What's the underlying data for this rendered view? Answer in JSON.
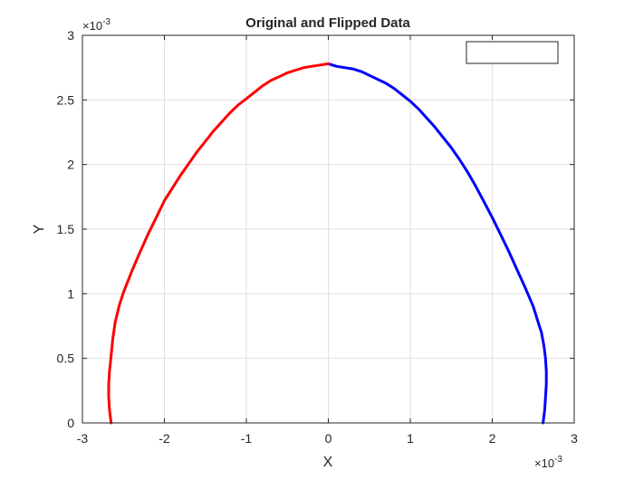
{
  "chart_data": {
    "type": "line",
    "title": "Original and Flipped Data",
    "xlabel": "X",
    "ylabel": "Y",
    "x_exponent_base": "×10",
    "x_exponent_power": "-3",
    "y_exponent_base": "×10",
    "y_exponent_power": "-3",
    "xlim": [
      -0.003,
      0.003
    ],
    "ylim": [
      0,
      0.003
    ],
    "x_ticks": [
      -0.003,
      -0.002,
      -0.001,
      0,
      0.001,
      0.002,
      0.003
    ],
    "x_tick_labels": [
      "-3",
      "-2",
      "-1",
      "0",
      "1",
      "2",
      "3"
    ],
    "y_ticks": [
      0,
      0.0005,
      0.001,
      0.0015,
      0.002,
      0.0025,
      0.003
    ],
    "y_tick_labels": [
      "0",
      "0.5",
      "1",
      "1.5",
      "2",
      "2.5",
      "3"
    ],
    "grid": true,
    "legend": {
      "placement": "top-right",
      "entries": []
    },
    "series": [
      {
        "color": "#0000ff",
        "x": [
          0.0,
          0.0001,
          0.0002,
          0.0003,
          0.0004,
          0.0005,
          0.0006,
          0.0007,
          0.0008,
          0.0009,
          0.001,
          0.0011,
          0.0012,
          0.0013,
          0.0014,
          0.0015,
          0.0016,
          0.0017,
          0.0018,
          0.0019,
          0.002,
          0.0021,
          0.0022,
          0.0023,
          0.0024,
          0.0025,
          0.00255,
          0.0026,
          0.00263,
          0.00265,
          0.00266,
          0.00266,
          0.00265,
          0.00264,
          0.00262
        ],
        "y": [
          0.00278,
          0.00276,
          0.00275,
          0.00274,
          0.00272,
          0.00269,
          0.00266,
          0.00263,
          0.00259,
          0.00254,
          0.00249,
          0.00243,
          0.00236,
          0.00229,
          0.00221,
          0.00213,
          0.00204,
          0.00194,
          0.00183,
          0.00171,
          0.00159,
          0.00146,
          0.00133,
          0.00119,
          0.00105,
          0.0009,
          0.0008,
          0.0007,
          0.0006,
          0.0005,
          0.0004,
          0.0003,
          0.0002,
          0.0001,
          0.0
        ]
      },
      {
        "color": "#ff0000",
        "x": [
          0.0,
          -0.0001,
          -0.0002,
          -0.0003,
          -0.0004,
          -0.0005,
          -0.0006,
          -0.0007,
          -0.0008,
          -0.0009,
          -0.001,
          -0.0011,
          -0.0012,
          -0.0013,
          -0.0014,
          -0.0015,
          -0.0016,
          -0.0017,
          -0.0018,
          -0.0019,
          -0.002,
          -0.0021,
          -0.0022,
          -0.0023,
          -0.0024,
          -0.0025,
          -0.00255,
          -0.0026,
          -0.00263,
          -0.00265,
          -0.00267,
          -0.00268,
          -0.00268,
          -0.00267,
          -0.00266,
          -0.00265
        ],
        "y": [
          0.00278,
          0.00277,
          0.00276,
          0.00275,
          0.00273,
          0.00271,
          0.00268,
          0.00265,
          0.00261,
          0.00256,
          0.00251,
          0.00246,
          0.0024,
          0.00233,
          0.00226,
          0.00218,
          0.0021,
          0.00201,
          0.00192,
          0.00182,
          0.00172,
          0.00159,
          0.00146,
          0.00132,
          0.00117,
          0.00101,
          0.00091,
          0.00078,
          0.00065,
          0.00052,
          0.0004,
          0.0003,
          0.0002,
          0.0001,
          5e-05,
          0.0
        ]
      }
    ]
  }
}
